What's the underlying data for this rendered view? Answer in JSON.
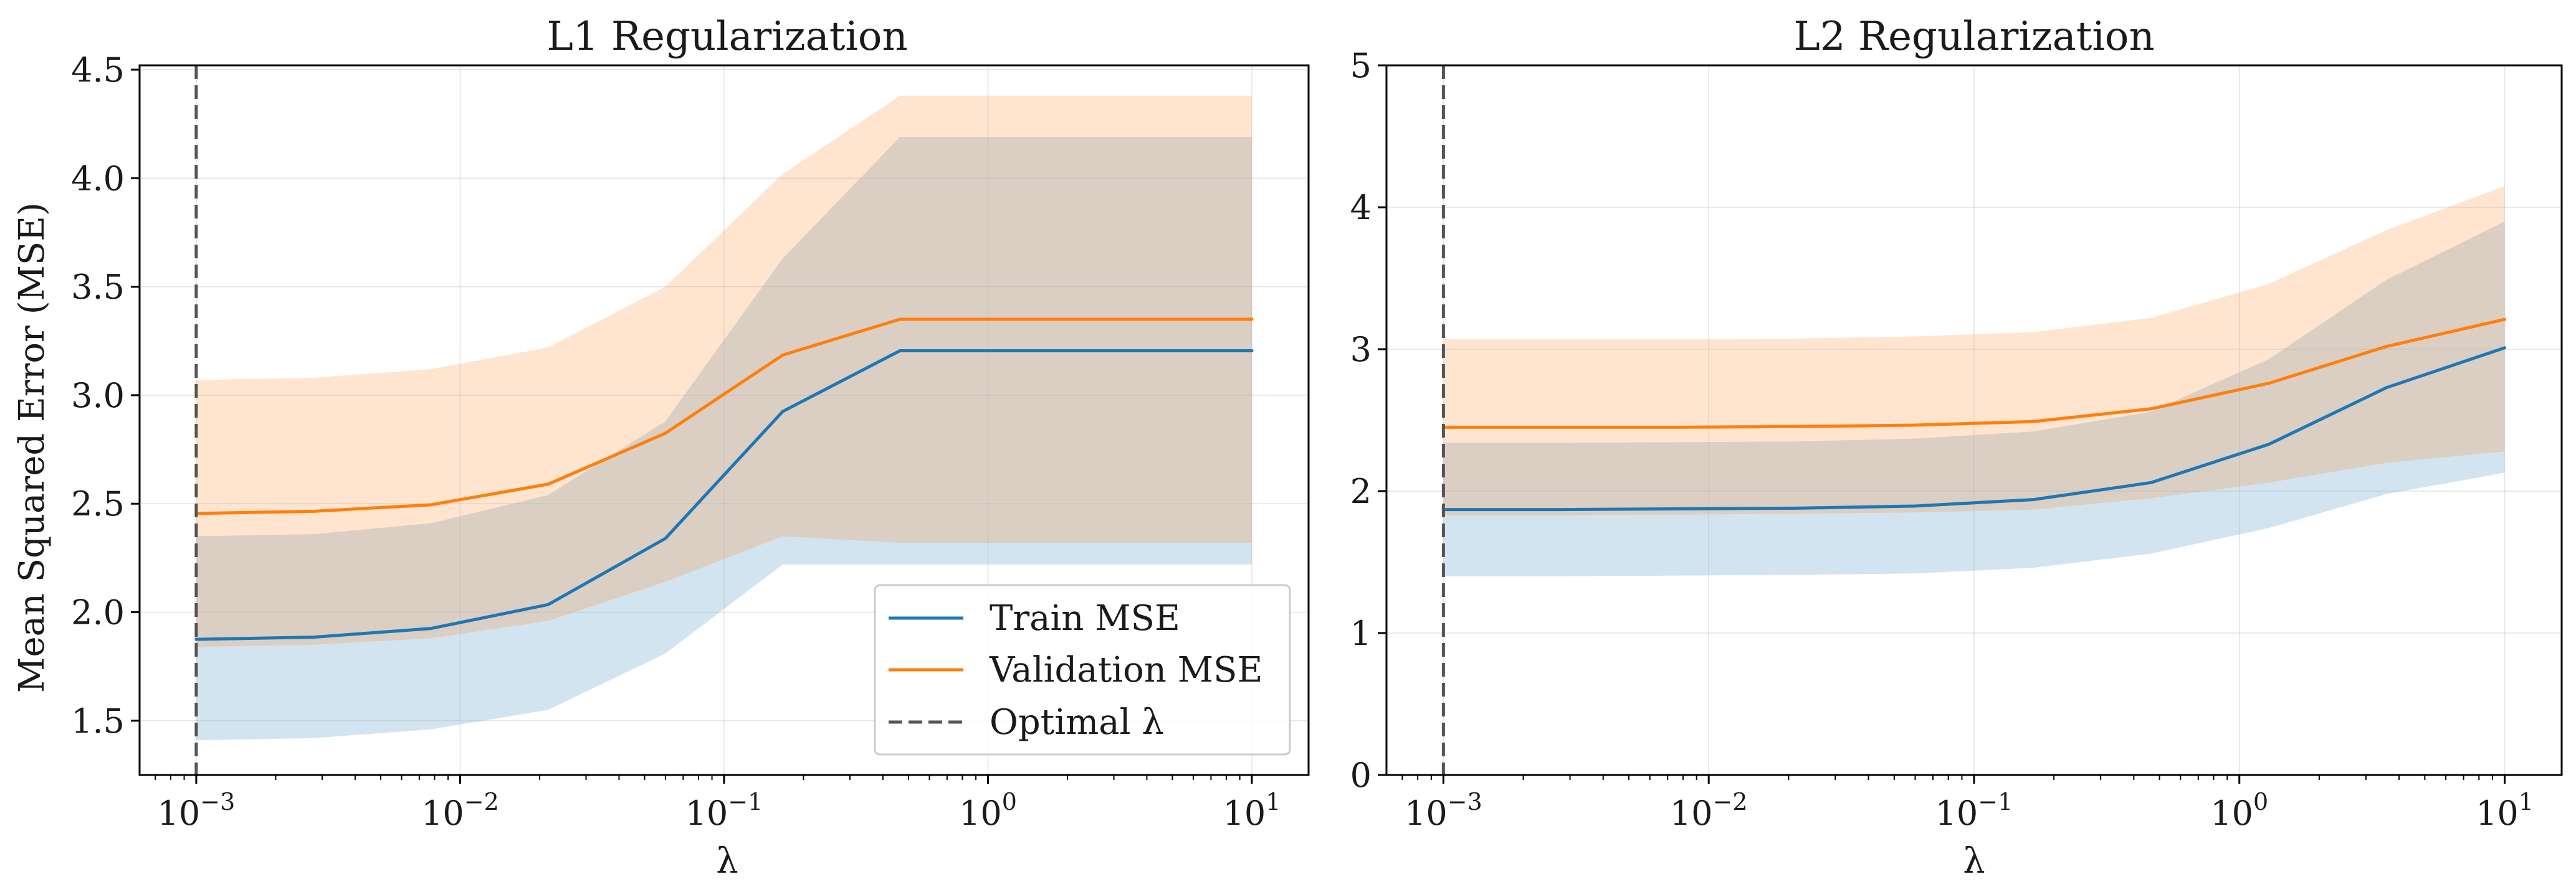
{
  "colors": {
    "train": "#1f77b4",
    "validation": "#ff7f0e",
    "optimal": "#555555"
  },
  "chart_data": [
    {
      "type": "line",
      "title": "L1 Regularization",
      "xlabel": "λ",
      "ylabel": "Mean Squared Error (MSE)",
      "xscale": "log",
      "xlim": [
        0.00061,
        16.4
      ],
      "ylim": [
        1.25,
        4.52
      ],
      "yticks": [
        1.5,
        2.0,
        2.5,
        3.0,
        3.5,
        4.0,
        4.5
      ],
      "ytick_labels": [
        "1.5",
        "2.0",
        "2.5",
        "3.0",
        "3.5",
        "4.0",
        "4.5"
      ],
      "xticks": [
        0.001,
        0.01,
        0.1,
        1,
        10
      ],
      "xtick_labels": [
        {
          "base": "10",
          "exp": "−3"
        },
        {
          "base": "10",
          "exp": "−2"
        },
        {
          "base": "10",
          "exp": "−1"
        },
        {
          "base": "10",
          "exp": "0"
        },
        {
          "base": "10",
          "exp": "1"
        }
      ],
      "grid": true,
      "legend": {
        "placement": "lower-right",
        "entries": [
          "Train MSE",
          "Validation MSE",
          "Optimal λ"
        ]
      },
      "optimal_lambda": 0.001,
      "x": [
        0.001,
        0.00278,
        0.00774,
        0.02154,
        0.05995,
        0.16681,
        0.46416,
        1.29155,
        3.59381,
        10.0
      ],
      "series": [
        {
          "name": "Train MSE",
          "values": [
            1.875,
            1.885,
            1.925,
            2.035,
            2.34,
            2.925,
            3.205,
            3.205,
            3.205,
            3.205
          ],
          "band_lower": [
            1.41,
            1.42,
            1.46,
            1.55,
            1.81,
            2.22,
            2.22,
            2.22,
            2.22,
            2.22
          ],
          "band_upper": [
            2.35,
            2.36,
            2.41,
            2.54,
            2.88,
            3.63,
            4.19,
            4.19,
            4.19,
            4.19
          ]
        },
        {
          "name": "Validation MSE",
          "values": [
            2.455,
            2.465,
            2.495,
            2.59,
            2.825,
            3.185,
            3.35,
            3.35,
            3.35,
            3.35
          ],
          "band_lower": [
            1.84,
            1.85,
            1.88,
            1.96,
            2.14,
            2.35,
            2.32,
            2.32,
            2.32,
            2.32
          ],
          "band_upper": [
            3.07,
            3.08,
            3.12,
            3.22,
            3.5,
            4.02,
            4.38,
            4.38,
            4.38,
            4.38
          ]
        }
      ]
    },
    {
      "type": "line",
      "title": "L2 Regularization",
      "xlabel": "λ",
      "ylabel": "",
      "xscale": "log",
      "xlim": [
        0.00061,
        16.4
      ],
      "ylim": [
        0,
        5
      ],
      "yticks": [
        0,
        1,
        2,
        3,
        4,
        5
      ],
      "ytick_labels": [
        "0",
        "1",
        "2",
        "3",
        "4",
        "5"
      ],
      "xticks": [
        0.001,
        0.01,
        0.1,
        1,
        10
      ],
      "xtick_labels": [
        {
          "base": "10",
          "exp": "−3"
        },
        {
          "base": "10",
          "exp": "−2"
        },
        {
          "base": "10",
          "exp": "−1"
        },
        {
          "base": "10",
          "exp": "0"
        },
        {
          "base": "10",
          "exp": "1"
        }
      ],
      "grid": true,
      "optimal_lambda": 0.001,
      "x": [
        0.001,
        0.00278,
        0.00774,
        0.02154,
        0.05995,
        0.16681,
        0.46416,
        1.29155,
        3.59381,
        10.0
      ],
      "series": [
        {
          "name": "Train MSE",
          "values": [
            1.87,
            1.87,
            1.875,
            1.88,
            1.895,
            1.94,
            2.06,
            2.33,
            2.73,
            3.01
          ],
          "band_lower": [
            1.4,
            1.4,
            1.405,
            1.41,
            1.42,
            1.46,
            1.56,
            1.74,
            1.98,
            2.13
          ],
          "band_upper": [
            2.34,
            2.34,
            2.345,
            2.35,
            2.37,
            2.42,
            2.56,
            2.93,
            3.49,
            3.9
          ]
        },
        {
          "name": "Validation MSE",
          "values": [
            2.45,
            2.45,
            2.45,
            2.455,
            2.465,
            2.49,
            2.58,
            2.76,
            3.02,
            3.21
          ],
          "band_lower": [
            1.83,
            1.83,
            1.835,
            1.84,
            1.85,
            1.87,
            1.95,
            2.06,
            2.2,
            2.28
          ],
          "band_upper": [
            3.07,
            3.07,
            3.07,
            3.075,
            3.09,
            3.12,
            3.22,
            3.46,
            3.84,
            4.15
          ]
        }
      ]
    }
  ]
}
